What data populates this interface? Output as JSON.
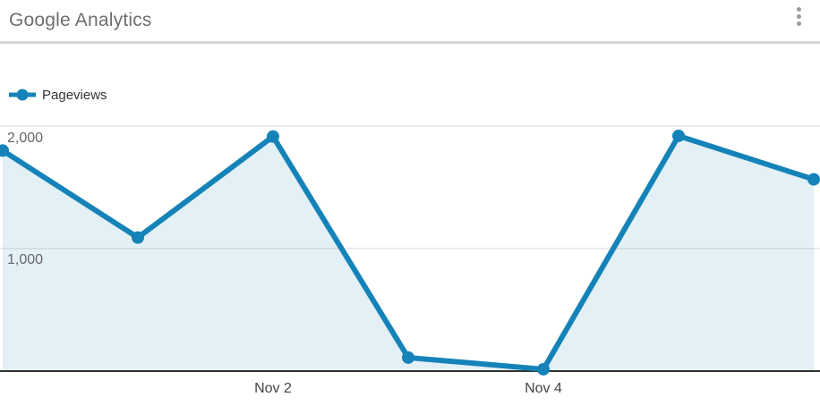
{
  "header": {
    "title": "Google Analytics",
    "menu_icon": "kebab-menu-icon"
  },
  "legend": {
    "series_label": "Pageviews"
  },
  "chart_data": {
    "type": "area",
    "title": "Google Analytics",
    "series": [
      {
        "name": "Pageviews",
        "values": [
          1800,
          1090,
          1915,
          110,
          15,
          1920,
          1565
        ]
      }
    ],
    "x": [
      0,
      1,
      2,
      3,
      4,
      5,
      6
    ],
    "x_tick_labels": [
      {
        "index": 2,
        "label": "Nov 2"
      },
      {
        "index": 4,
        "label": "Nov 4"
      }
    ],
    "y_ticks": [
      {
        "value": 1000,
        "label": "1,000"
      },
      {
        "value": 2000,
        "label": "2,000"
      }
    ],
    "ylim": [
      0,
      2100
    ],
    "grid": "horizontal",
    "legend_position": "top-left",
    "colors": {
      "line": "#1583b8",
      "area_fill": "#e3eff7",
      "gridline": "#ececec",
      "axis_line": "#333333",
      "title_text": "#6f6f6f",
      "tick_text": "#555555"
    }
  }
}
